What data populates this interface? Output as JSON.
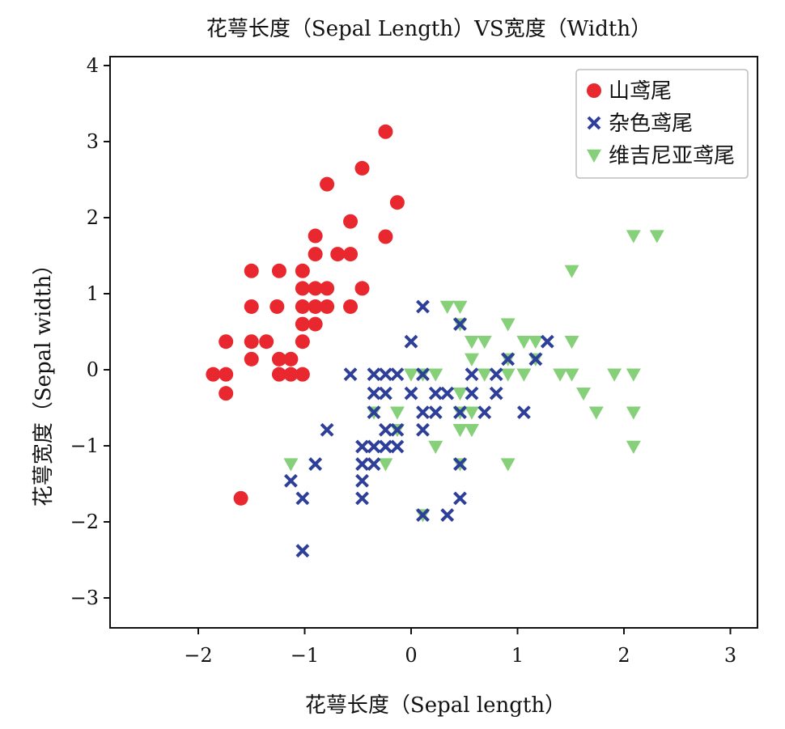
{
  "chart_data": {
    "type": "scatter",
    "title": "花萼长度（Sepal Length）VS宽度（Width）",
    "xlabel": "花萼长度（Sepal length）",
    "ylabel": "花萼宽度（Sepal width）",
    "xlim": [
      -2.8,
      3.2
    ],
    "ylim": [
      -3.4,
      4.1
    ],
    "xticks": [
      -2,
      -1,
      0,
      1,
      2,
      3
    ],
    "yticks": [
      -3,
      -2,
      -1,
      0,
      1,
      2,
      3,
      4
    ],
    "xtick_labels": [
      "−2",
      "−1",
      "0",
      "1",
      "2",
      "3"
    ],
    "ytick_labels": [
      "−3",
      "−2",
      "−1",
      "0",
      "1",
      "2",
      "3",
      "4"
    ],
    "legend_position": "top-right",
    "series": [
      {
        "name": "山鸢尾",
        "marker": "circle",
        "color": "#e8282e",
        "points": [
          [
            -0.24,
            3.13
          ],
          [
            -0.46,
            2.65
          ],
          [
            -0.79,
            2.44
          ],
          [
            -0.13,
            2.2
          ],
          [
            -0.57,
            1.95
          ],
          [
            -0.9,
            1.76
          ],
          [
            -0.24,
            1.75
          ],
          [
            -0.9,
            1.52
          ],
          [
            -0.69,
            1.52
          ],
          [
            -0.57,
            1.52
          ],
          [
            -1.5,
            1.3
          ],
          [
            -1.24,
            1.3
          ],
          [
            -1.02,
            1.3
          ],
          [
            -1.02,
            1.07
          ],
          [
            -0.9,
            1.07
          ],
          [
            -0.79,
            1.07
          ],
          [
            -0.46,
            1.07
          ],
          [
            -1.5,
            0.83
          ],
          [
            -1.26,
            0.83
          ],
          [
            -1.02,
            0.83
          ],
          [
            -0.9,
            0.83
          ],
          [
            -0.79,
            0.83
          ],
          [
            -0.57,
            0.83
          ],
          [
            -1.02,
            0.6
          ],
          [
            -0.9,
            0.6
          ],
          [
            -1.74,
            0.37
          ],
          [
            -1.5,
            0.37
          ],
          [
            -1.36,
            0.37
          ],
          [
            -1.02,
            0.37
          ],
          [
            -1.5,
            0.14
          ],
          [
            -1.24,
            0.14
          ],
          [
            -1.13,
            0.14
          ],
          [
            -1.86,
            -0.06
          ],
          [
            -1.74,
            -0.06
          ],
          [
            -1.24,
            -0.06
          ],
          [
            -1.13,
            -0.06
          ],
          [
            -1.02,
            -0.06
          ],
          [
            -1.74,
            -0.31
          ],
          [
            -1.6,
            -1.69
          ]
        ]
      },
      {
        "name": "杂色鸢尾",
        "marker": "x",
        "color": "#2e3f9a",
        "points": [
          [
            0.11,
            0.83
          ],
          [
            0.46,
            0.6
          ],
          [
            0.0,
            0.37
          ],
          [
            1.28,
            0.37
          ],
          [
            0.91,
            0.14
          ],
          [
            1.17,
            0.14
          ],
          [
            -0.57,
            -0.06
          ],
          [
            -0.35,
            -0.06
          ],
          [
            -0.24,
            -0.06
          ],
          [
            -0.13,
            -0.06
          ],
          [
            0.11,
            -0.06
          ],
          [
            0.57,
            -0.06
          ],
          [
            0.8,
            -0.06
          ],
          [
            -0.35,
            -0.31
          ],
          [
            -0.24,
            -0.31
          ],
          [
            0.0,
            -0.31
          ],
          [
            0.23,
            -0.31
          ],
          [
            0.34,
            -0.31
          ],
          [
            0.57,
            -0.31
          ],
          [
            0.8,
            -0.31
          ],
          [
            -0.35,
            -0.56
          ],
          [
            0.11,
            -0.56
          ],
          [
            0.23,
            -0.56
          ],
          [
            0.46,
            -0.56
          ],
          [
            0.69,
            -0.56
          ],
          [
            1.06,
            -0.56
          ],
          [
            -0.24,
            -0.79
          ],
          [
            -0.13,
            -0.79
          ],
          [
            0.11,
            -0.79
          ],
          [
            -0.79,
            -0.79
          ],
          [
            -0.35,
            -1.01
          ],
          [
            -0.24,
            -1.01
          ],
          [
            -0.13,
            -1.01
          ],
          [
            -0.46,
            -1.01
          ],
          [
            -0.46,
            -1.24
          ],
          [
            -0.35,
            -1.24
          ],
          [
            -0.9,
            -1.24
          ],
          [
            0.46,
            -1.24
          ],
          [
            -1.13,
            -1.46
          ],
          [
            -0.46,
            -1.46
          ],
          [
            -1.02,
            -1.69
          ],
          [
            -0.46,
            -1.69
          ],
          [
            0.46,
            -1.69
          ],
          [
            0.11,
            -1.91
          ],
          [
            0.34,
            -1.91
          ],
          [
            -1.02,
            -2.38
          ]
        ]
      },
      {
        "name": "维吉尼亚鸢尾",
        "marker": "triangle-down",
        "color": "#86d07a",
        "points": [
          [
            2.09,
            1.76
          ],
          [
            2.31,
            1.76
          ],
          [
            1.51,
            1.3
          ],
          [
            0.34,
            0.83
          ],
          [
            0.46,
            0.83
          ],
          [
            0.46,
            0.6
          ],
          [
            0.91,
            0.6
          ],
          [
            0.57,
            0.37
          ],
          [
            0.69,
            0.37
          ],
          [
            1.06,
            0.37
          ],
          [
            1.17,
            0.37
          ],
          [
            1.51,
            0.37
          ],
          [
            0.57,
            0.14
          ],
          [
            0.91,
            0.14
          ],
          [
            1.17,
            0.14
          ],
          [
            0.0,
            -0.06
          ],
          [
            0.11,
            -0.06
          ],
          [
            0.23,
            -0.06
          ],
          [
            0.69,
            -0.06
          ],
          [
            0.91,
            -0.06
          ],
          [
            1.06,
            -0.06
          ],
          [
            1.4,
            -0.06
          ],
          [
            1.51,
            -0.06
          ],
          [
            1.91,
            -0.06
          ],
          [
            2.09,
            -0.06
          ],
          [
            0.46,
            -0.31
          ],
          [
            1.62,
            -0.31
          ],
          [
            -0.35,
            -0.56
          ],
          [
            -0.13,
            -0.56
          ],
          [
            0.46,
            -0.56
          ],
          [
            0.57,
            -0.56
          ],
          [
            1.74,
            -0.56
          ],
          [
            2.09,
            -0.56
          ],
          [
            -0.13,
            -0.79
          ],
          [
            0.46,
            -0.79
          ],
          [
            0.57,
            -0.79
          ],
          [
            0.23,
            -1.01
          ],
          [
            2.09,
            -1.01
          ],
          [
            -1.13,
            -1.24
          ],
          [
            -0.24,
            -1.24
          ],
          [
            0.46,
            -1.24
          ],
          [
            0.91,
            -1.24
          ],
          [
            0.11,
            -1.91
          ]
        ]
      }
    ]
  }
}
